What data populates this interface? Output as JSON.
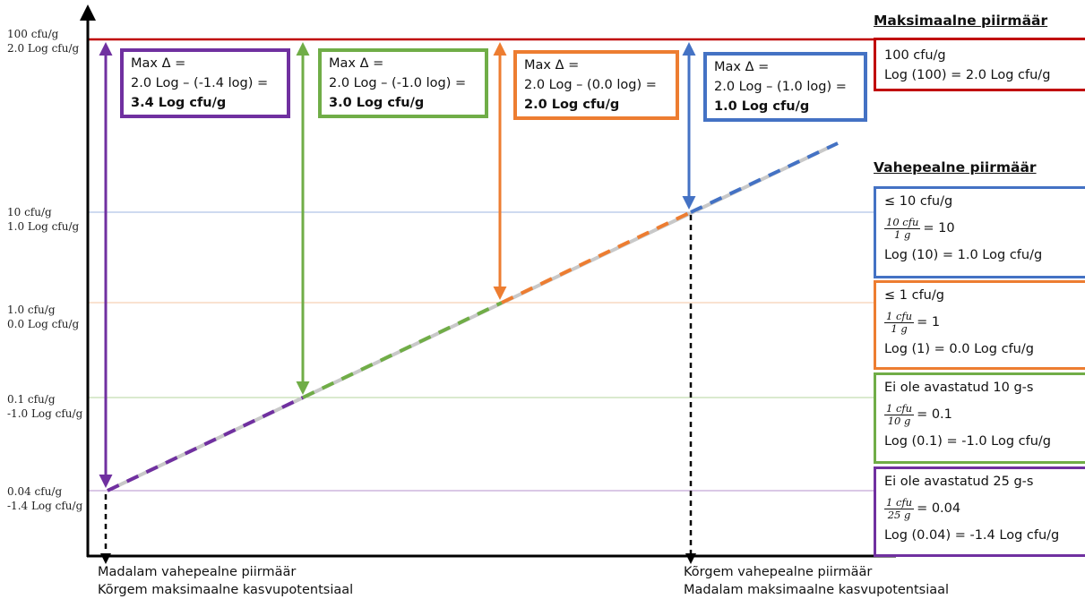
{
  "colors": {
    "max": "#c00000",
    "blue": "#4472c4",
    "orange": "#ed7d31",
    "green": "#70ad47",
    "purple": "#7030a0",
    "axis": "#000000"
  },
  "y_axis_labels": [
    {
      "cfu": "100 cfu/g",
      "log": "2.0 Log cfu/g"
    },
    {
      "cfu": "10 cfu/g",
      "log": "1.0 Log cfu/g"
    },
    {
      "cfu": "1.0 cfu/g",
      "log": "0.0 Log cfu/g"
    },
    {
      "cfu": "0.1 cfu/g",
      "log": "-1.0 Log  cfu/g"
    },
    {
      "cfu": "0.04 cfu/g",
      "log": "-1.4 Log cfu/g"
    }
  ],
  "delta_boxes": [
    {
      "title": "Max Δ =",
      "formula": "2.0 Log – (-1.4 log) =",
      "result": "3.4 Log cfu/g",
      "color": "purple"
    },
    {
      "title": "Max Δ =",
      "formula": "2.0 Log – (-1.0 log) =",
      "result": "3.0 Log cfu/g",
      "color": "green"
    },
    {
      "title": "Max Δ =",
      "formula": "2.0 Log – (0.0 log) =",
      "result": "2.0 Log cfu/g",
      "color": "orange"
    },
    {
      "title": "Max Δ =",
      "formula": "2.0 Log – (1.0 log) =",
      "result": "1.0 Log cfu/g",
      "color": "blue"
    }
  ],
  "max_heading": "Maksimaalne piirmäär",
  "max_box": {
    "line1": "100 cfu/g",
    "line2": "Log (100) = 2.0 Log cfu/g"
  },
  "intermediate_heading": "Vahepealne piirmäär",
  "right_boxes": [
    {
      "title": "≤ 10 cfu/g",
      "numerator": "10 cfu",
      "denominator": "1 g",
      "equals": "= 10",
      "log": "Log (10) = 1.0 Log cfu/g",
      "color": "blue"
    },
    {
      "title": "≤ 1 cfu/g",
      "numerator": "1 cfu",
      "denominator": "1 g",
      "equals": "= 1",
      "log": "Log (1) = 0.0 Log cfu/g",
      "color": "orange"
    },
    {
      "title": "Ei ole avastatud 10 g-s",
      "numerator": "1 cfu",
      "denominator": "10 g",
      "equals": "= 0.1",
      "log": "Log (0.1) = -1.0 Log cfu/g",
      "color": "green"
    },
    {
      "title": "Ei ole avastatud 25 g-s",
      "numerator": "1 cfu",
      "denominator": "25 g",
      "equals": "= 0.04",
      "log": "Log (0.04) = -1.4 Log cfu/g",
      "color": "purple"
    }
  ],
  "x_labels": {
    "left": {
      "line1": "Madalam vahepealne piirmäär",
      "line2": "Kõrgem maksimaalne kasvupotentsiaal"
    },
    "right": {
      "line1": "Kõrgem vahepealne piirmäär",
      "line2": "Madalam maksimaalne kasvupotentsiaal"
    }
  }
}
